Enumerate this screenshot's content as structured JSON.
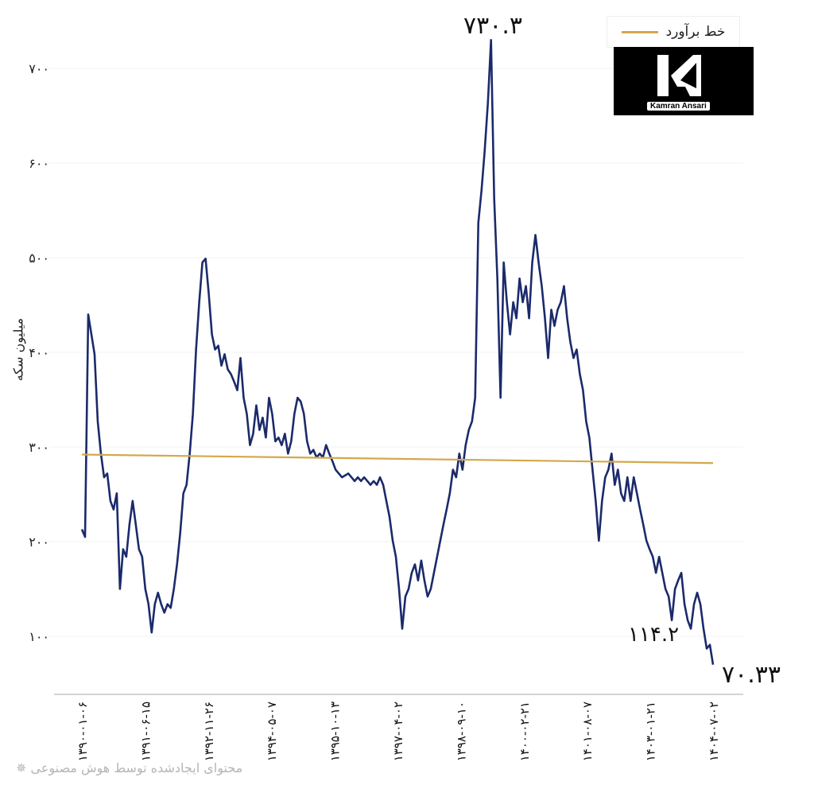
{
  "chart_data": {
    "type": "line",
    "title": "",
    "xlabel": "",
    "ylabel": "میلیون سکه",
    "ylim": [
      50,
      740
    ],
    "yticks": [
      100,
      200,
      300,
      400,
      500,
      600,
      700
    ],
    "ytick_labels": [
      "۱۰۰",
      "۲۰۰",
      "۳۰۰",
      "۴۰۰",
      "۵۰۰",
      "۶۰۰",
      "۷۰۰"
    ],
    "xtick_labels": [
      "۱۳۹۰-۰۱-۰۶",
      "۱۳۹۱-۰۶-۱۵",
      "۱۳۹۲-۱۱-۲۶",
      "۱۳۹۴-۰۵-۰۷",
      "۱۳۹۵-۱۰-۱۳",
      "۱۳۹۷-۰۴-۰۲",
      "۱۳۹۸-۰۹-۱۰",
      "۱۴۰۰-۰۲-۲۱",
      "۱۴۰۱-۰۸-۰۷",
      "۱۴۰۳-۰۱-۲۱",
      "۱۴۰۴-۰۷-۰۲"
    ],
    "x_range": [
      "1390-01-06",
      "1404-07-02"
    ],
    "grid": "faint horizontal",
    "legend": {
      "placement": "top-right",
      "entries": [
        {
          "name": "خط برآورد",
          "color": "#d4a84b"
        }
      ]
    },
    "series": [
      {
        "color": "#1b2a6b",
        "values": [
          213,
          205,
          440,
          419,
          398,
          327,
          293,
          268,
          272,
          243,
          234,
          251,
          150,
          192,
          184,
          218,
          243,
          218,
          192,
          184,
          150,
          134,
          104,
          134,
          146,
          134,
          125,
          134,
          130,
          150,
          176,
          209,
          251,
          260,
          293,
          335,
          403,
          453,
          495,
          499,
          462,
          419,
          403,
          407,
          386,
          398,
          382,
          377,
          369,
          360,
          394,
          352,
          335,
          302,
          314,
          344,
          318,
          331,
          310,
          352,
          335,
          306,
          310,
          302,
          314,
          293,
          306,
          335,
          352,
          348,
          335,
          306,
          293,
          297,
          289,
          293,
          289,
          302,
          293,
          285,
          276,
          272,
          268,
          270,
          272,
          268,
          264,
          268,
          264,
          268,
          264,
          260,
          264,
          260,
          268,
          260,
          243,
          226,
          201,
          184,
          150,
          108,
          142,
          150,
          167,
          176,
          159,
          180,
          159,
          142,
          150,
          167,
          184,
          201,
          218,
          234,
          251,
          276,
          268,
          293,
          276,
          302,
          318,
          327,
          352,
          537,
          571,
          613,
          663,
          730,
          562,
          478,
          352,
          495,
          453,
          419,
          453,
          436,
          478,
          453,
          470,
          436,
          495,
          524,
          495,
          470,
          436,
          394,
          445,
          428,
          445,
          453,
          470,
          436,
          411,
          394,
          403,
          377,
          360,
          327,
          310,
          276,
          243,
          201,
          243,
          268,
          276,
          293,
          260,
          276,
          251,
          243,
          268,
          243,
          268,
          251,
          234,
          218,
          201,
          192,
          184,
          167,
          184,
          167,
          150,
          142,
          117,
          150,
          159,
          167,
          134,
          117,
          108,
          134,
          146,
          134,
          108,
          87,
          91,
          70
        ]
      },
      {
        "name": "خط برآورد",
        "color": "#d4a84b",
        "values": [
          292,
          283
        ]
      }
    ],
    "annotations": [
      {
        "text": "۷۳۰.۳",
        "value": 730.3
      },
      {
        "text": "۱۱۴.۲",
        "value": 114.2
      },
      {
        "text": "۷۰.۳۳",
        "value": 70.33
      }
    ]
  },
  "logo_text": "Kamran Ansari",
  "watermark": "محتوای ایجادشده توسط هوش مصنوعی ✵"
}
